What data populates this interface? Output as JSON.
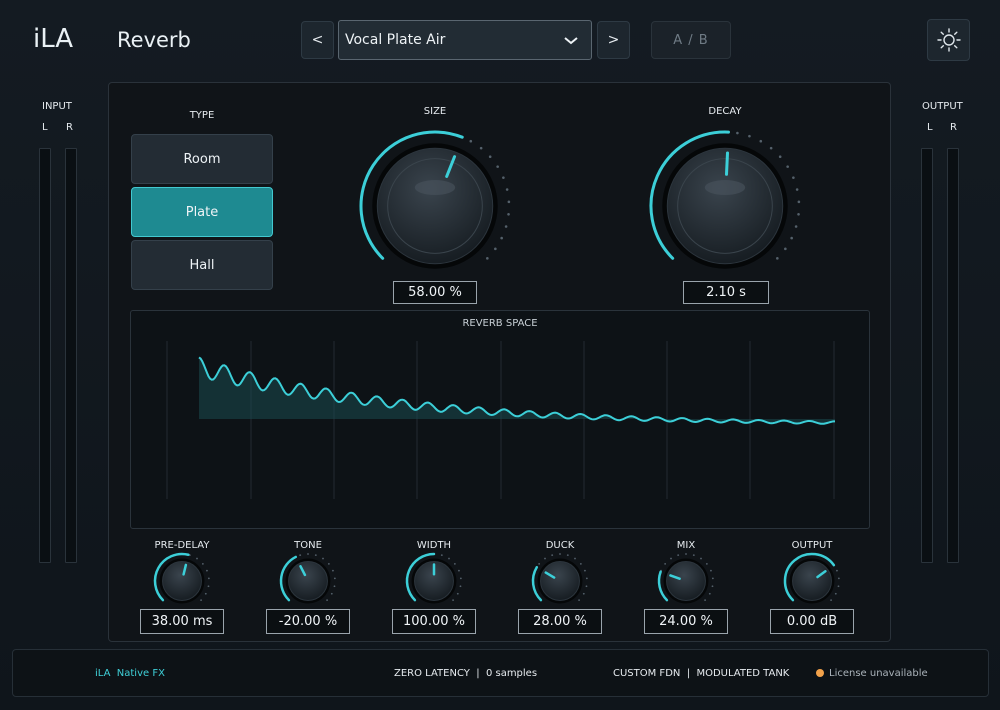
{
  "header": {
    "brand": "iLA",
    "plugin_title": "Reverb",
    "prev_label": "<",
    "next_label": ">",
    "preset_name": "Vocal Plate Air",
    "ab_label": "A / B"
  },
  "meters": {
    "input_label": "INPUT",
    "output_label": "OUTPUT",
    "left": "L",
    "right": "R"
  },
  "type": {
    "label": "TYPE",
    "options": [
      "Room",
      "Plate",
      "Hall"
    ],
    "selected": "Plate"
  },
  "size": {
    "label": "SIZE",
    "value": "58.00 %",
    "level": 0.58
  },
  "decay": {
    "label": "DECAY",
    "value": "2.10 s",
    "level": 0.51
  },
  "reverb_space": {
    "label": "REVERB SPACE"
  },
  "small_knobs": [
    {
      "label": "PRE-DELAY",
      "value": "38.00 ms",
      "level": 0.55
    },
    {
      "label": "TONE",
      "value": "-20.00 %",
      "level": 0.4
    },
    {
      "label": "WIDTH",
      "value": "100.00 %",
      "level": 0.5
    },
    {
      "label": "DUCK",
      "value": "28.00 %",
      "level": 0.28
    },
    {
      "label": "MIX",
      "value": "24.00 %",
      "level": 0.24
    },
    {
      "label": "OUTPUT",
      "value": "0.00 dB",
      "level": 0.7
    }
  ],
  "footer": {
    "brand": "iLA  Native FX",
    "latency": "ZERO LATENCY  |  0 samples",
    "engine": "CUSTOM FDN  |  MODULATED TANK",
    "license": "License unavailable"
  },
  "colors": {
    "accent": "#3ccfd8",
    "license_dot": "#f2a24b"
  }
}
